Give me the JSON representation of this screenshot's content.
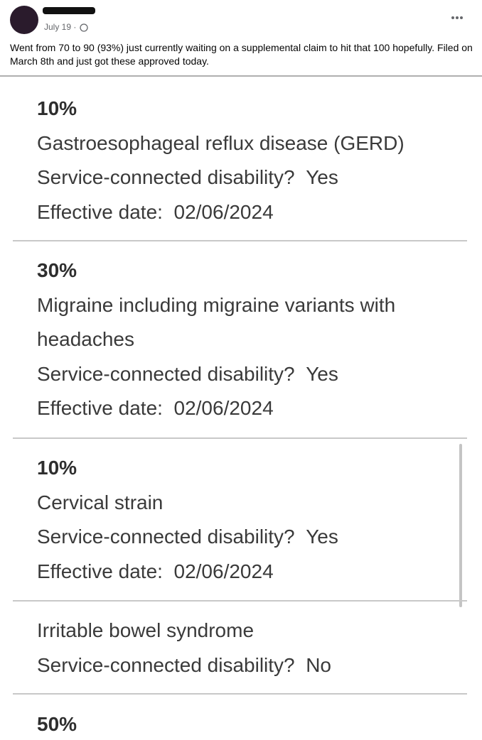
{
  "post": {
    "date": "July 19",
    "text": "Went from 70 to 90 (93%) just currently waiting on a supplemental claim to hit that 100 hopefully. Filed on March 8th and just got these approved today."
  },
  "items": [
    {
      "rating": "10%",
      "condition": "Gastroesophageal reflux disease (GERD)",
      "sc_label": "Service-connected disability?",
      "sc_value": "Yes",
      "date_label": "Effective date:",
      "date_value": "02/06/2024"
    },
    {
      "rating": "30%",
      "condition": "Migraine including migraine variants with headaches",
      "sc_label": "Service-connected disability?",
      "sc_value": "Yes",
      "date_label": "Effective date:",
      "date_value": "02/06/2024"
    },
    {
      "rating": "10%",
      "condition": "Cervical strain",
      "sc_label": "Service-connected disability?",
      "sc_value": "Yes",
      "date_label": "Effective date:",
      "date_value": "02/06/2024"
    },
    {
      "condition": "Irritable bowel syndrome",
      "sc_label": "Service-connected disability?",
      "sc_value": "No"
    },
    {
      "rating": "50%"
    }
  ]
}
